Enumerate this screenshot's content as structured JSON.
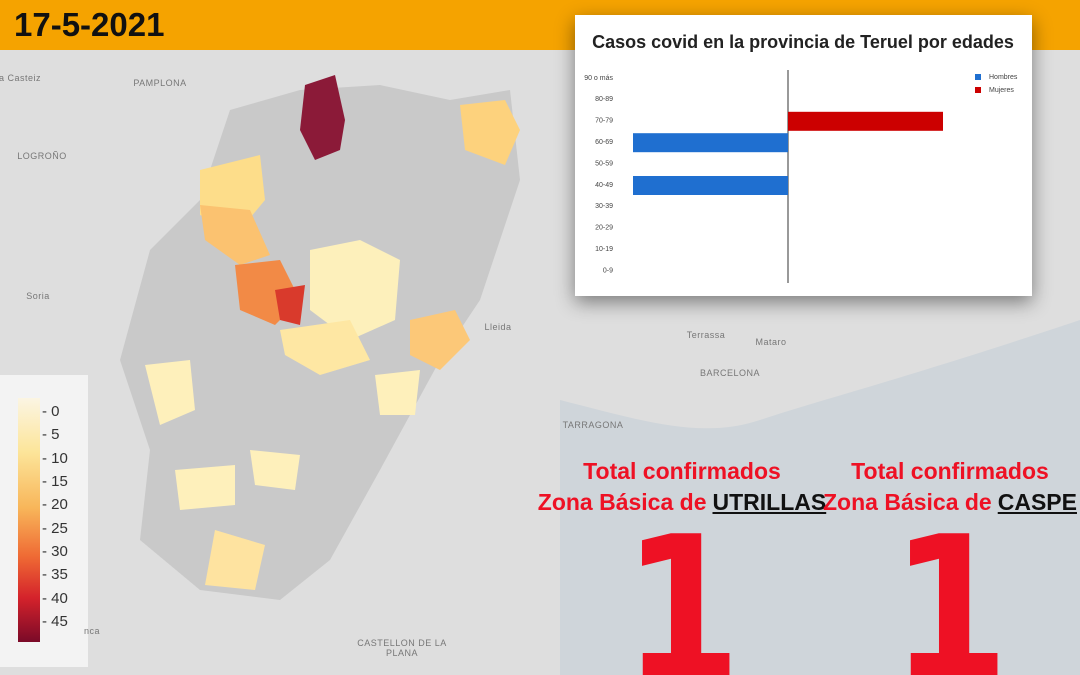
{
  "header": {
    "date": "17-5-2021"
  },
  "map": {
    "labels": [
      "a Casteiz",
      "PAMPLONA",
      "LOGROÑO",
      "Soria",
      "Lleida",
      "Terrassa",
      "Mataro",
      "BARCELONA",
      "TARRAGONA",
      "CASTELLON DE LA PLANA",
      "nca"
    ]
  },
  "colorbar": {
    "ticks": [
      0,
      5,
      10,
      15,
      20,
      25,
      30,
      35,
      40,
      45
    ]
  },
  "chart_data": {
    "type": "bar",
    "orientation": "horizontal-diverging",
    "title": "Casos covid en la provincia de Teruel por edades",
    "categories": [
      "90 o más",
      "80-89",
      "70-79",
      "60-69",
      "50-59",
      "40-49",
      "30-39",
      "20-29",
      "10-19",
      "0-9"
    ],
    "series": [
      {
        "name": "Hombres",
        "color": "#1f6fd0",
        "values": [
          0,
          0,
          0,
          1,
          0,
          1,
          0,
          0,
          0,
          0
        ]
      },
      {
        "name": "Mujeres",
        "color": "#cc0000",
        "values": [
          0,
          0,
          1,
          0,
          0,
          0,
          0,
          0,
          0,
          0
        ]
      }
    ]
  },
  "totals": [
    {
      "line1": "Total confirmados",
      "line2": "Zona Básica de",
      "zone": "UTRILLAS",
      "total": 1
    },
    {
      "line1": "Total confirmados",
      "line2": "Zona Básica de",
      "zone": "CASPE",
      "total": 1
    }
  ]
}
